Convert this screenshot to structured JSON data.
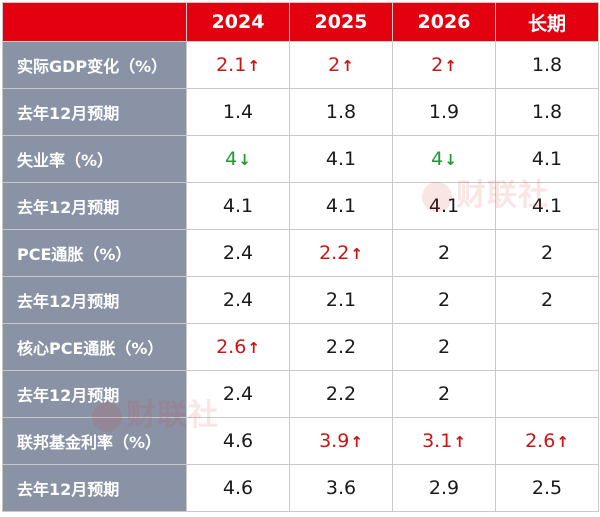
{
  "chart_data": {
    "type": "table",
    "columns": [
      "2024",
      "2025",
      "2026",
      "长期"
    ],
    "rows": [
      {
        "label": "实际GDP变化（%）",
        "values": [
          {
            "v": "2.1",
            "d": "up"
          },
          {
            "v": "2",
            "d": "up"
          },
          {
            "v": "2",
            "d": "up"
          },
          {
            "v": "1.8",
            "d": ""
          }
        ]
      },
      {
        "label": "去年12月预期",
        "values": [
          {
            "v": "1.4",
            "d": ""
          },
          {
            "v": "1.8",
            "d": ""
          },
          {
            "v": "1.9",
            "d": ""
          },
          {
            "v": "1.8",
            "d": ""
          }
        ]
      },
      {
        "label": "失业率（%）",
        "values": [
          {
            "v": "4",
            "d": "down"
          },
          {
            "v": "4.1",
            "d": ""
          },
          {
            "v": "4",
            "d": "down"
          },
          {
            "v": "4.1",
            "d": ""
          }
        ]
      },
      {
        "label": "去年12月预期",
        "values": [
          {
            "v": "4.1",
            "d": ""
          },
          {
            "v": "4.1",
            "d": ""
          },
          {
            "v": "4.1",
            "d": ""
          },
          {
            "v": "4.1",
            "d": ""
          }
        ]
      },
      {
        "label": "PCE通胀（%）",
        "values": [
          {
            "v": "2.4",
            "d": ""
          },
          {
            "v": "2.2",
            "d": "up"
          },
          {
            "v": "2",
            "d": ""
          },
          {
            "v": "2",
            "d": ""
          }
        ]
      },
      {
        "label": "去年12月预期",
        "values": [
          {
            "v": "2.4",
            "d": ""
          },
          {
            "v": "2.1",
            "d": ""
          },
          {
            "v": "2",
            "d": ""
          },
          {
            "v": "2",
            "d": ""
          }
        ]
      },
      {
        "label": "核心PCE通胀（%）",
        "values": [
          {
            "v": "2.6",
            "d": "up"
          },
          {
            "v": "2.2",
            "d": ""
          },
          {
            "v": "2",
            "d": ""
          },
          {
            "v": "",
            "d": ""
          }
        ]
      },
      {
        "label": "去年12月预期",
        "values": [
          {
            "v": "2.4",
            "d": ""
          },
          {
            "v": "2.2",
            "d": ""
          },
          {
            "v": "2",
            "d": ""
          },
          {
            "v": "",
            "d": ""
          }
        ]
      },
      {
        "label": "联邦基金利率（%）",
        "values": [
          {
            "v": "4.6",
            "d": ""
          },
          {
            "v": "3.9",
            "d": "up"
          },
          {
            "v": "3.1",
            "d": "up"
          },
          {
            "v": "2.6",
            "d": "up"
          }
        ]
      },
      {
        "label": "去年12月预期",
        "values": [
          {
            "v": "4.6",
            "d": ""
          },
          {
            "v": "3.6",
            "d": ""
          },
          {
            "v": "2.9",
            "d": ""
          },
          {
            "v": "2.5",
            "d": ""
          }
        ]
      }
    ]
  },
  "watermark": {
    "text": "财联社"
  },
  "arrows": {
    "up": "↑",
    "down": "↓"
  },
  "colors": {
    "header_bg": "#e3000f",
    "label_bg": "#8a93a6",
    "up": "#cc1414",
    "down": "#1e9a2e"
  }
}
